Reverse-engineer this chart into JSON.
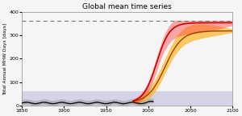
{
  "title": "Global mean time series",
  "ylabel": "Total Annual MHW Days [days]",
  "xlim": [
    1850,
    2100
  ],
  "ylim": [
    0,
    400
  ],
  "yticks": [
    0,
    100,
    200,
    300,
    400
  ],
  "xticks": [
    1850,
    1900,
    1950,
    2000,
    2050,
    2100
  ],
  "dashed_line_y": 365,
  "hist_start": 1850,
  "hist_end": 2006,
  "proj_start": 1982,
  "proj_end": 2100,
  "bg_color": "#f5f5f5",
  "hist_band_color": "#9999cc",
  "hist_band_alpha": 0.35,
  "hist_band_low": 0,
  "hist_band_high": 60,
  "rcp45_color": "#994400",
  "rcp45_band_color": "#ffaa00",
  "rcp45_band_alpha": 0.6,
  "rcp85_color": "#cc0000",
  "rcp85_band_color": "#ff4444",
  "rcp85_band_alpha": 0.45,
  "hist_mean_color": "#000000",
  "hist_spread_color": "#888888",
  "dashed_color": "#666666"
}
